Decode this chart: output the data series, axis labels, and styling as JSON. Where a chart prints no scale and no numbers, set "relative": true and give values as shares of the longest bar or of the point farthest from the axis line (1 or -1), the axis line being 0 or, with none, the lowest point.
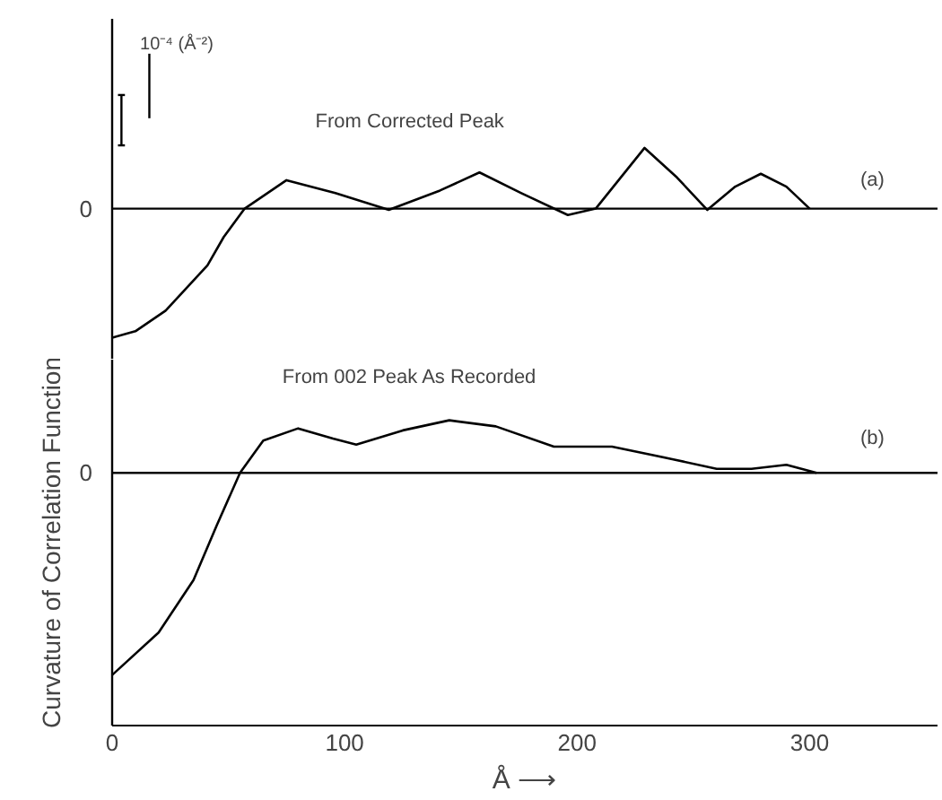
{
  "chart_data": [
    {
      "type": "line",
      "relative": true,
      "xlim": [
        0,
        355
      ],
      "tick_labels": false,
      "line_style": "solid",
      "annotations": [
        "10⁻⁴ (Å⁻²)",
        "From Corrected Peak",
        "(a)"
      ],
      "ref_lines": [
        {
          "axis": "y",
          "value": 0,
          "label": "0"
        }
      ],
      "series": [
        {
          "color": "#000000",
          "x": [
            0,
            10,
            23,
            41,
            48,
            57,
            75,
            96,
            119,
            141,
            158,
            176,
            196,
            208,
            229,
            243,
            256,
            268,
            279,
            290,
            300
          ],
          "values": [
            -1,
            -0.95,
            -0.79,
            -0.44,
            -0.22,
            0,
            0.22,
            0.12,
            -0.01,
            0.14,
            0.28,
            0.12,
            -0.05,
            0,
            0.47,
            0.24,
            -0.01,
            0.17,
            0.27,
            0.17,
            0
          ]
        }
      ]
    },
    {
      "type": "line",
      "relative": true,
      "xlim": [
        0,
        355
      ],
      "xticks": [
        0,
        100,
        200,
        300
      ],
      "xlabel": "Å ⟶",
      "ylabel": "Curvature of Correlation Function",
      "tick_labels": "x",
      "line_style": "solid",
      "annotations": [
        "From 002 Peak As Recorded",
        "(b)"
      ],
      "ref_lines": [
        {
          "axis": "y",
          "value": 0,
          "label": "0"
        }
      ],
      "series": [
        {
          "color": "#000000",
          "x": [
            0,
            20,
            35,
            45,
            55,
            65,
            80,
            95,
            105,
            125,
            145,
            165,
            190,
            215,
            240,
            260,
            275,
            290,
            303
          ],
          "values": [
            -1,
            -0.79,
            -0.53,
            -0.26,
            0,
            0.16,
            0.22,
            0.17,
            0.14,
            0.21,
            0.26,
            0.23,
            0.13,
            0.13,
            0.07,
            0.02,
            0.02,
            0.04,
            0
          ]
        }
      ]
    }
  ]
}
